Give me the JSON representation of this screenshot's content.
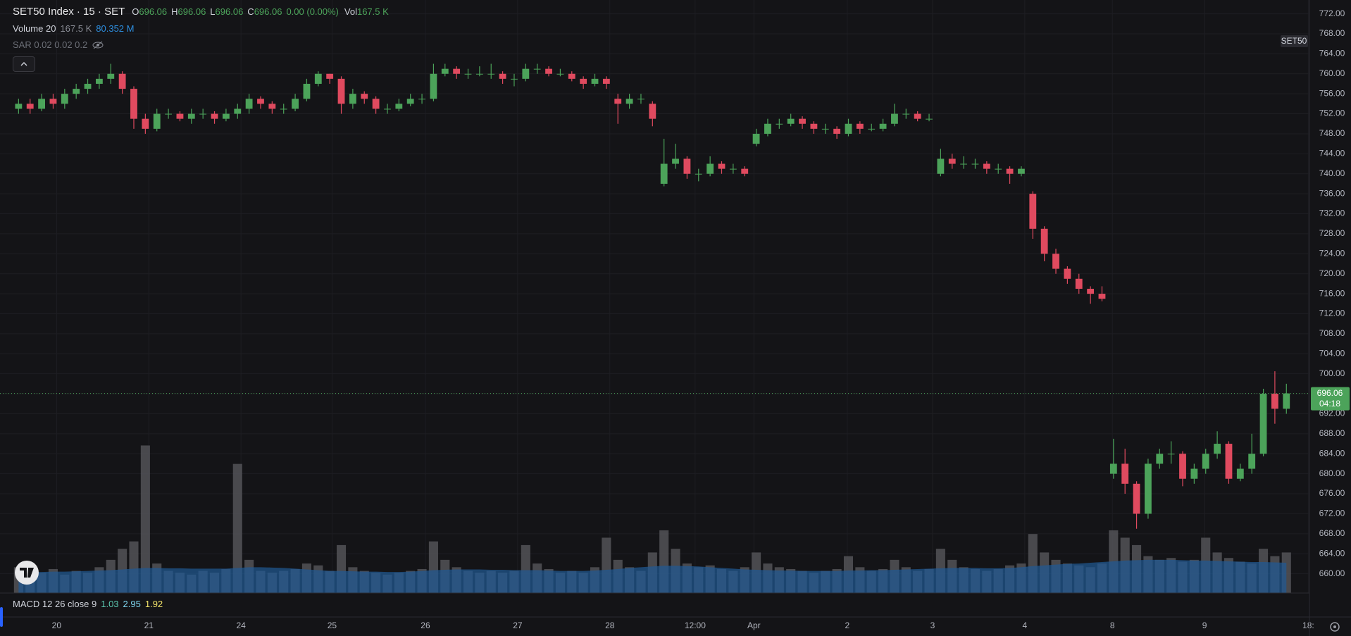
{
  "chart_data": {
    "type": "candlestick",
    "title": "SET50 Index · 15 · SET",
    "symbol_tag": "SET50",
    "ohlc_legend": [
      {
        "label": "O",
        "value": "696.06"
      },
      {
        "label": "H",
        "value": "696.06"
      },
      {
        "label": "L",
        "value": "696.06"
      },
      {
        "label": "C",
        "value": "696.06"
      }
    ],
    "change": "0.00 (0.00%)",
    "volume_legend": {
      "label": "Vol",
      "value": "167.5 K"
    },
    "indicators": [
      {
        "name": "Volume 20",
        "values": [
          "167.5 K",
          "80.352 M"
        ],
        "colors": [
          "#8a8d96",
          "#2e8fe0"
        ]
      },
      {
        "name": "SAR 0.02 0.02 0.2"
      },
      {
        "name": "MACD 12 26 close 9",
        "values": [
          "1.03",
          "2.95",
          "1.92"
        ],
        "colors": [
          "#5cc7b0",
          "#7fd6f0",
          "#f4e46a"
        ]
      }
    ],
    "countdown": "04:18",
    "up_color": "#4ca35a",
    "down_color": "#e04a5f",
    "volume_color": "#56565b",
    "volume_ma_color": "#1f5a96",
    "grid": true,
    "x": [
      0,
      1,
      2,
      3,
      4,
      5,
      6,
      7,
      8,
      9,
      10,
      11,
      12,
      13,
      14,
      15,
      16,
      17,
      18,
      19,
      20,
      21,
      22,
      23,
      24,
      25,
      26,
      27,
      28,
      29,
      30,
      31,
      32,
      33,
      34,
      35,
      36,
      37,
      38,
      39,
      40,
      41,
      42,
      43,
      44,
      45,
      46,
      47,
      48,
      49,
      50,
      51,
      52,
      53,
      54,
      55,
      56,
      57,
      58,
      59,
      60,
      61,
      62,
      63,
      64,
      65,
      66,
      67,
      68,
      69,
      70,
      71,
      72,
      73,
      74,
      75,
      76,
      77,
      78,
      79,
      80,
      81,
      82,
      83,
      84,
      85,
      86,
      87,
      88,
      89,
      90,
      91,
      92,
      93,
      94,
      95,
      96,
      97,
      98,
      99,
      100,
      101,
      102,
      103,
      104,
      105,
      106,
      107,
      108,
      109,
      110
    ],
    "ohlc": [
      [
        753,
        755,
        752,
        754
      ],
      [
        754,
        755,
        752,
        753
      ],
      [
        753,
        756,
        752.5,
        755
      ],
      [
        755,
        756,
        753,
        754
      ],
      [
        754,
        757,
        753,
        756
      ],
      [
        756,
        758,
        755,
        757
      ],
      [
        757,
        759,
        756,
        758
      ],
      [
        758,
        760,
        757,
        759
      ],
      [
        759,
        762,
        758,
        760
      ],
      [
        760,
        760.5,
        756,
        757
      ],
      [
        757,
        757.5,
        749,
        751
      ],
      [
        751,
        752,
        748,
        749
      ],
      [
        749,
        753,
        748.5,
        752
      ],
      [
        752,
        753,
        751,
        752
      ],
      [
        752,
        752.5,
        750.5,
        751
      ],
      [
        751,
        753,
        750,
        752
      ],
      [
        752,
        753,
        751,
        752
      ],
      [
        752,
        752.5,
        750,
        751
      ],
      [
        751,
        753,
        750.5,
        752
      ],
      [
        752,
        754,
        751,
        753
      ],
      [
        753,
        756,
        752,
        755
      ],
      [
        755,
        755.5,
        753,
        754
      ],
      [
        754,
        754.5,
        752,
        753
      ],
      [
        753,
        754,
        752,
        753
      ],
      [
        753,
        756,
        752.5,
        755
      ],
      [
        755,
        759,
        754.5,
        758
      ],
      [
        758,
        760.5,
        757.5,
        760
      ],
      [
        760,
        760,
        758,
        759
      ],
      [
        759,
        759.5,
        752,
        754
      ],
      [
        754,
        757,
        753,
        756
      ],
      [
        756,
        756.5,
        754,
        755
      ],
      [
        755,
        755.5,
        752,
        753
      ],
      [
        753,
        754,
        752,
        753
      ],
      [
        753,
        755,
        752.5,
        754
      ],
      [
        754,
        756,
        753.5,
        755
      ],
      [
        755,
        756,
        754,
        755
      ],
      [
        755,
        762,
        754.5,
        760
      ],
      [
        760,
        762,
        759.5,
        761
      ],
      [
        761,
        761.5,
        759,
        760
      ],
      [
        760,
        761,
        759,
        760
      ],
      [
        760,
        761.5,
        759.5,
        760
      ],
      [
        760,
        762,
        759,
        760
      ],
      [
        760,
        760.5,
        758,
        759
      ],
      [
        759,
        760,
        757.5,
        759
      ],
      [
        759,
        762,
        758.5,
        761
      ],
      [
        761,
        762,
        760,
        761
      ],
      [
        761,
        761.5,
        759.5,
        760
      ],
      [
        760,
        761,
        759.5,
        760
      ],
      [
        760,
        760.5,
        758.5,
        759
      ],
      [
        759,
        759.5,
        757,
        758
      ],
      [
        758,
        760,
        757.5,
        759
      ],
      [
        759,
        759.5,
        757,
        758
      ],
      [
        755,
        756,
        750,
        754
      ],
      [
        754,
        756,
        753,
        755
      ],
      [
        755,
        756,
        754,
        755
      ],
      [
        754,
        754.5,
        749.5,
        751
      ],
      [
        738,
        747,
        737.5,
        742
      ],
      [
        742,
        746,
        741,
        743
      ],
      [
        743,
        743.5,
        739,
        740
      ],
      [
        740,
        741,
        738.5,
        740
      ],
      [
        740,
        743.5,
        739.5,
        742
      ],
      [
        742,
        742.5,
        740,
        741
      ],
      [
        741,
        742,
        740,
        741
      ],
      [
        741,
        741.5,
        739.5,
        740
      ],
      [
        746,
        749,
        745.5,
        748
      ],
      [
        748,
        751,
        747.5,
        750
      ],
      [
        750,
        751,
        749,
        750
      ],
      [
        750,
        752,
        749.5,
        751
      ],
      [
        751,
        751.5,
        749,
        750
      ],
      [
        750,
        750.5,
        748,
        749
      ],
      [
        749,
        750,
        748,
        749
      ],
      [
        749,
        749.5,
        747,
        748
      ],
      [
        748,
        751,
        747.5,
        750
      ],
      [
        750,
        750.5,
        748,
        749
      ],
      [
        749,
        750,
        748.5,
        749
      ],
      [
        749,
        751,
        748.5,
        750
      ],
      [
        750,
        754,
        749.5,
        752
      ],
      [
        752,
        753,
        751,
        752
      ],
      [
        752,
        752.5,
        750.5,
        751
      ],
      [
        751,
        752,
        750.5,
        751
      ],
      [
        740,
        745,
        739.5,
        743
      ],
      [
        743,
        744,
        741,
        742
      ],
      [
        742,
        743.5,
        741,
        742
      ],
      [
        742,
        743,
        741,
        742
      ],
      [
        742,
        742.5,
        740,
        741
      ],
      [
        741,
        742,
        740,
        741
      ],
      [
        741,
        741.5,
        738,
        740
      ],
      [
        740,
        741.5,
        739.5,
        741
      ],
      [
        736,
        736.5,
        727,
        729
      ],
      [
        729,
        729.5,
        722.5,
        724
      ],
      [
        724,
        725,
        720,
        721
      ],
      [
        721,
        721.5,
        718,
        719
      ],
      [
        719,
        720,
        716,
        717
      ],
      [
        717,
        717.5,
        714,
        716
      ],
      [
        716,
        717.5,
        714.5,
        715
      ],
      [
        680,
        687,
        679,
        682
      ],
      [
        682,
        685,
        676,
        678
      ],
      [
        678,
        678.5,
        669,
        672
      ],
      [
        672,
        683,
        671,
        682
      ],
      [
        682,
        685,
        681,
        684
      ],
      [
        684,
        686.5,
        682,
        684
      ],
      [
        684,
        684.5,
        677.5,
        679
      ],
      [
        679,
        682,
        678,
        681
      ],
      [
        681,
        685,
        680,
        684
      ],
      [
        684,
        688.5,
        683,
        686
      ],
      [
        686,
        686.5,
        678,
        679
      ],
      [
        679,
        682,
        678.5,
        681
      ],
      [
        681,
        688,
        680,
        684
      ],
      [
        684,
        697,
        683.5,
        696
      ],
      [
        696,
        700.5,
        690,
        693
      ],
      [
        693,
        698,
        692,
        696.06
      ]
    ],
    "volume": [
      70,
      60,
      55,
      65,
      50,
      60,
      55,
      70,
      90,
      120,
      140,
      400,
      80,
      60,
      55,
      50,
      60,
      55,
      65,
      350,
      90,
      60,
      55,
      60,
      65,
      80,
      75,
      60,
      130,
      70,
      60,
      55,
      50,
      55,
      60,
      65,
      140,
      90,
      70,
      60,
      55,
      60,
      55,
      60,
      130,
      80,
      65,
      55,
      60,
      55,
      70,
      150,
      90,
      70,
      60,
      110,
      170,
      120,
      80,
      70,
      75,
      65,
      60,
      70,
      110,
      80,
      70,
      65,
      60,
      55,
      60,
      65,
      100,
      70,
      60,
      65,
      90,
      70,
      60,
      65,
      120,
      90,
      70,
      65,
      60,
      65,
      75,
      80,
      160,
      110,
      90,
      80,
      75,
      70,
      80,
      170,
      150,
      130,
      100,
      90,
      95,
      85,
      90,
      150,
      110,
      95,
      85,
      80,
      120,
      100,
      110
    ],
    "volume_ma": [
      55,
      56,
      57,
      58,
      58,
      59,
      60,
      61,
      62,
      64,
      66,
      68,
      68,
      67,
      67,
      66,
      66,
      66,
      66,
      68,
      70,
      70,
      69,
      68,
      66,
      64,
      62,
      60,
      60,
      59,
      58,
      58,
      57,
      57,
      58,
      60,
      62,
      63,
      64,
      64,
      64,
      63,
      63,
      62,
      62,
      62,
      61,
      60,
      60,
      60,
      61,
      63,
      65,
      68,
      70,
      72,
      74,
      74,
      73,
      72,
      70,
      68,
      66,
      64,
      63,
      62,
      61,
      61,
      60,
      60,
      60,
      60,
      61,
      61,
      62,
      62,
      63,
      64,
      65,
      66,
      67,
      68,
      68,
      68,
      67,
      67,
      68,
      70,
      73,
      75,
      77,
      79,
      80,
      82,
      84,
      86,
      88,
      89,
      90,
      90,
      90,
      89,
      88,
      88,
      87,
      86,
      85,
      84,
      84,
      83,
      82
    ],
    "volume_ylim": [
      0,
      420
    ],
    "xlim": [
      -1,
      112
    ],
    "xticks": [
      {
        "value": 3.3,
        "label": "20"
      },
      {
        "value": 11.3,
        "label": "21"
      },
      {
        "value": 19.3,
        "label": "24"
      },
      {
        "value": 27.2,
        "label": "25"
      },
      {
        "value": 35.3,
        "label": "26"
      },
      {
        "value": 43.3,
        "label": "27"
      },
      {
        "value": 51.3,
        "label": "28"
      },
      {
        "value": 58.7,
        "label": "12:00"
      },
      {
        "value": 63.8,
        "label": "Apr"
      },
      {
        "value": 71.9,
        "label": "2"
      },
      {
        "value": 79.3,
        "label": "3"
      },
      {
        "value": 87.3,
        "label": "4"
      },
      {
        "value": 94.9,
        "label": "8"
      },
      {
        "value": 102.9,
        "label": "9"
      },
      {
        "value": 111.9,
        "label": "18:"
      }
    ],
    "ylim": [
      656.14,
      774.76
    ],
    "yticks": [
      {
        "value": 660,
        "label": "660.00"
      },
      {
        "value": 664,
        "label": "664.00"
      },
      {
        "value": 668,
        "label": "668.00"
      },
      {
        "value": 672,
        "label": "672.00"
      },
      {
        "value": 676,
        "label": "676.00"
      },
      {
        "value": 680,
        "label": "680.00"
      },
      {
        "value": 684,
        "label": "684.00"
      },
      {
        "value": 688,
        "label": "688.00"
      },
      {
        "value": 692,
        "label": "692.00"
      },
      {
        "value": 696,
        "label": "696.00"
      },
      {
        "value": 700,
        "label": "700.00"
      },
      {
        "value": 704,
        "label": "704.00"
      },
      {
        "value": 708,
        "label": "708.00"
      },
      {
        "value": 712,
        "label": "712.00"
      },
      {
        "value": 716,
        "label": "716.00"
      },
      {
        "value": 720,
        "label": "720.00"
      },
      {
        "value": 724,
        "label": "724.00"
      },
      {
        "value": 728,
        "label": "728.00"
      },
      {
        "value": 732,
        "label": "732.00"
      },
      {
        "value": 736,
        "label": "736.00"
      },
      {
        "value": 740,
        "label": "740.00"
      },
      {
        "value": 744,
        "label": "744.00"
      },
      {
        "value": 748,
        "label": "748.00"
      },
      {
        "value": 752,
        "label": "752.00"
      },
      {
        "value": 756,
        "label": "756.00"
      },
      {
        "value": 760,
        "label": "760.00"
      },
      {
        "value": 764,
        "label": "764.00"
      },
      {
        "value": 768,
        "label": "768.00"
      },
      {
        "value": 772,
        "label": "772.00"
      }
    ]
  }
}
